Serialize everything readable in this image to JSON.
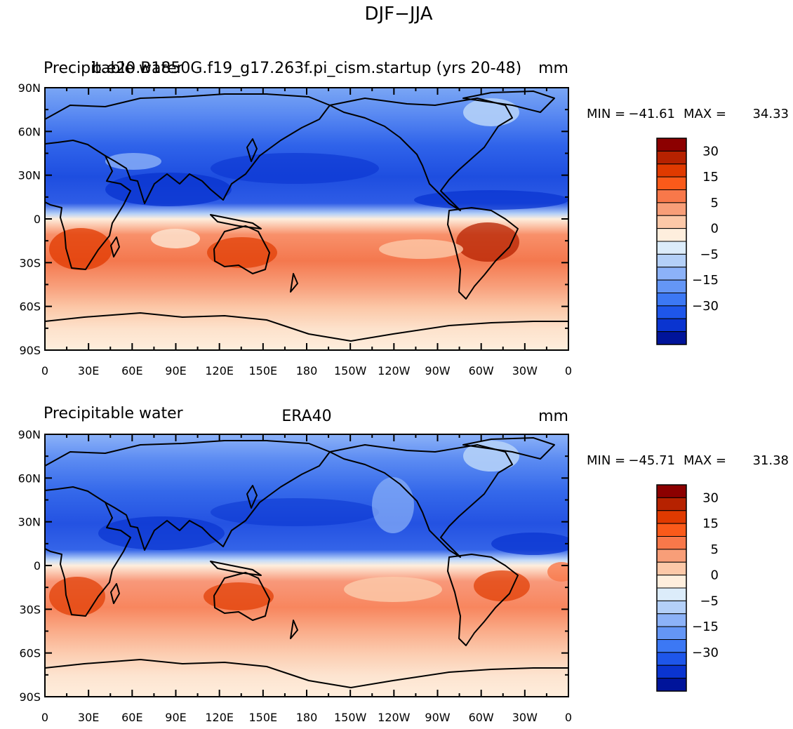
{
  "figure": {
    "title": "DJF−JJA"
  },
  "axes": {
    "lat_ticks": [
      "90N",
      "60N",
      "30N",
      "0",
      "30S",
      "60S",
      "90S"
    ],
    "lon_ticks": [
      "0",
      "30E",
      "60E",
      "90E",
      "120E",
      "150E",
      "180",
      "150W",
      "120W",
      "90W",
      "60W",
      "30W",
      "0"
    ]
  },
  "colorbar": {
    "tick_labels": [
      "30",
      "15",
      "5",
      "0",
      "−5",
      "−15",
      "−30"
    ],
    "colors": [
      "#8c0000",
      "#b62200",
      "#e03a00",
      "#fa5a1a",
      "#f8784a",
      "#f89e78",
      "#fcc8a8",
      "#feeedd",
      "#dcecfa",
      "#b4d0f8",
      "#8cb2f8",
      "#6496f6",
      "#3c78f4",
      "#1e56ea",
      "#0a34d0",
      "#00149a"
    ]
  },
  "panels": [
    {
      "left_title": "Precipitable water",
      "center_title": "b.e20.B1850G.f19_g17.263f.pi_cism.startup (yrs 20-48)",
      "units": "mm",
      "stats": {
        "min_label": "MIN =",
        "min": "−41.61",
        "max_label": "MAX =",
        "max": "34.33"
      }
    },
    {
      "left_title": "Precipitable water",
      "center_title": "ERA40",
      "units": "mm",
      "stats": {
        "min_label": "MIN =",
        "min": "−45.71",
        "max_label": "MAX =",
        "max": "31.38"
      }
    }
  ]
}
